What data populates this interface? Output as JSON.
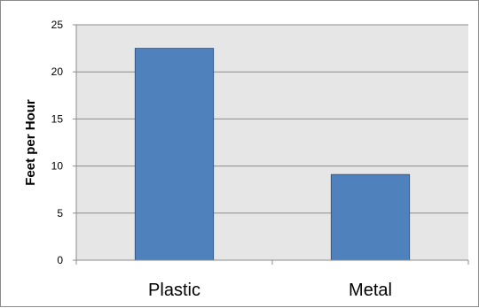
{
  "chart_data": {
    "type": "bar",
    "categories": [
      "Plastic",
      "Metal"
    ],
    "values": [
      22.5,
      9.1
    ],
    "title": "",
    "xlabel": "",
    "ylabel": "Feet per Hour",
    "ylim": [
      0,
      25
    ],
    "yticks": [
      0,
      5,
      10,
      15,
      20,
      25
    ],
    "grid": true,
    "legend": "none",
    "colors": {
      "bar_fill": "#4f81bd",
      "bar_stroke": "#2c4d7a",
      "plot_bg": "#e6e6e6",
      "grid": "#8c8c8c",
      "axis": "#8c8c8c"
    }
  }
}
